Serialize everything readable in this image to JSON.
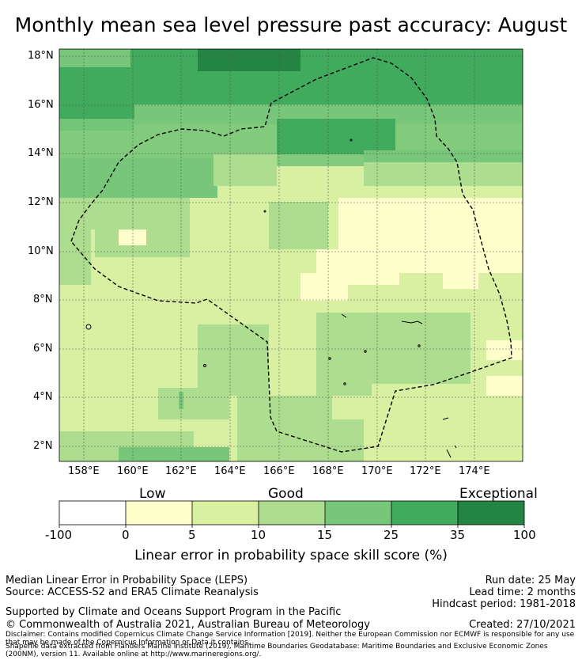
{
  "title": "Monthly mean sea level pressure past accuracy: August",
  "map": {
    "lat_labels": [
      "18°N",
      "16°N",
      "14°N",
      "12°N",
      "10°N",
      "8°N",
      "6°N",
      "4°N",
      "2°N"
    ],
    "lon_labels": [
      "158°E",
      "160°E",
      "162°E",
      "164°E",
      "166°E",
      "168°E",
      "170°E",
      "172°E",
      "174°E"
    ],
    "lon_range": [
      157,
      176
    ],
    "lat_range": [
      1.4,
      18.3
    ],
    "boundary_style": "dashed black line (EEZ)",
    "colors": {
      "c0": "#ffffff",
      "c5": "#ffffcc",
      "c10": "#d9f0a3",
      "c15": "#addd8e",
      "c25": "#78c679",
      "c35": "#41ab5d",
      "c100": "#238443"
    }
  },
  "colorbar": {
    "category_labels": [
      "Low",
      "Good",
      "Exceptional"
    ],
    "ticks": [
      "-100",
      "0",
      "5",
      "10",
      "15",
      "25",
      "35",
      "100"
    ],
    "segment_colors": [
      "#ffffff",
      "#ffffcc",
      "#d9f0a3",
      "#addd8e",
      "#78c679",
      "#41ab5d",
      "#238443"
    ],
    "title": "Linear error in probability space skill score (%)"
  },
  "footer": {
    "line1": "Median Linear Error in Probability Space (LEPS)",
    "line2": "Source: ACCESS-S2 and ERA5 Climate Reanalysis",
    "line3": "Supported by Climate and Oceans Support Program in the Pacific",
    "line4": "© Commonwealth of Australia 2021, Australian Bureau of Meteorology",
    "run_date": "Run date: 25 May",
    "lead_time": "Lead time: 2 months",
    "hindcast": "Hindcast period: 1981-2018",
    "created": "Created: 27/10/2021",
    "disclaimer1": "Disclaimer: Contains modified Copernicus Climate Change Service Information [2019]. Neither the European Commission nor ECMWF is responsible for any use that may be made of the Copernicus Information or Data it contains.",
    "disclaimer2": "Shapefile data extracted from Flanders Marine Institute (2019), Maritime Boundaries Geodatabase: Maritime Boundaries and Exclusive Economic Zones (200NM), version 11. Available online at http://www.marineregions.org/."
  }
}
